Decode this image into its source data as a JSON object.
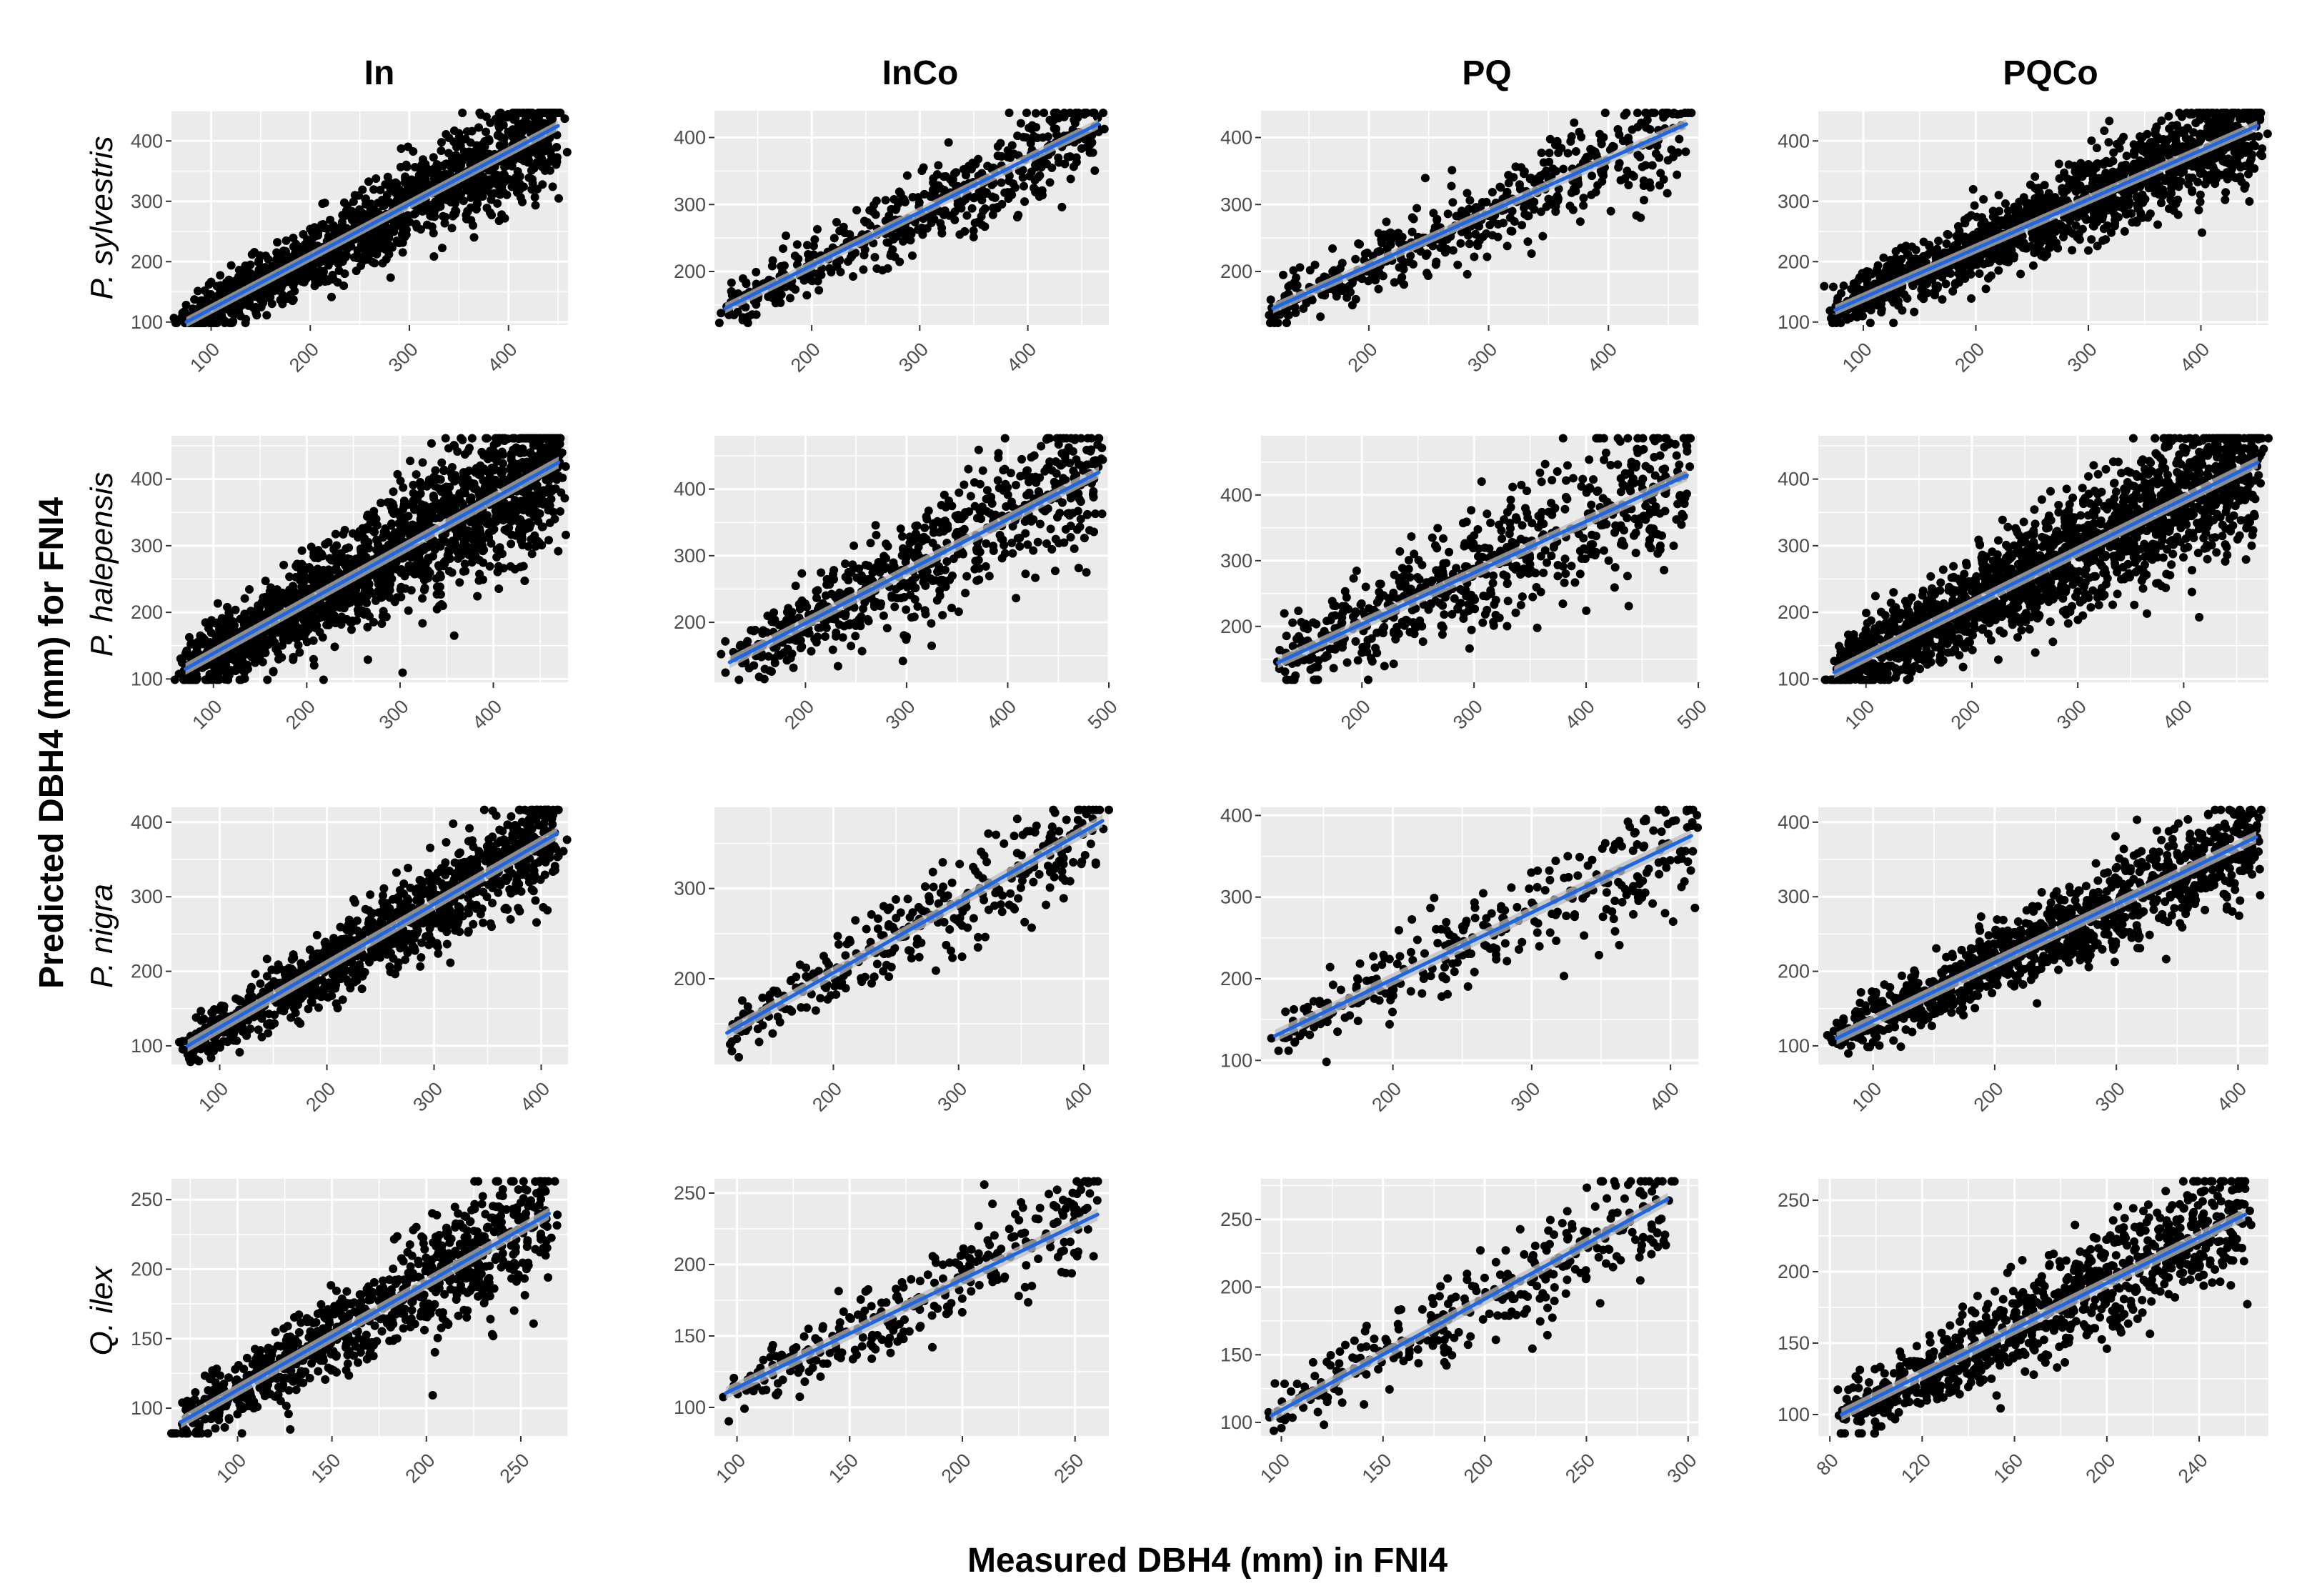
{
  "figure": {
    "xlabel": "Measured DBH4 (mm) in FNI4",
    "ylabel": "Predicted DBH4 (mm) for FNI4",
    "columns": [
      "In",
      "InCo",
      "PQ",
      "PQCo"
    ],
    "rows": [
      "P. sylvestris",
      "P. halepensis",
      "P. nigra",
      "Q. ilex"
    ]
  },
  "colors": {
    "panel_background": "#ebebeb",
    "grid": "#ffffff",
    "points": "#000000",
    "fit_line": "#1f66e5",
    "confidence_band": "#bcbcbc",
    "tick_text": "#4d4d4d"
  },
  "chart_data": [
    {
      "type": "scatter",
      "row": "P. sylvestris",
      "column": "In",
      "xlim": [
        60,
        460
      ],
      "ylim": [
        95,
        450
      ],
      "xticks": [
        100,
        200,
        300,
        400
      ],
      "yticks": [
        100,
        200,
        300,
        400
      ],
      "fit": {
        "x": [
          75,
          450
        ],
        "y": [
          100,
          425
        ]
      },
      "points": {
        "count": 1400,
        "spread": 35
      }
    },
    {
      "type": "scatter",
      "row": "P. sylvestris",
      "column": "InCo",
      "xlim": [
        110,
        475
      ],
      "ylim": [
        120,
        440
      ],
      "xticks": [
        200,
        300,
        400
      ],
      "yticks": [
        200,
        300,
        400
      ],
      "fit": {
        "x": [
          120,
          465
        ],
        "y": [
          145,
          420
        ]
      },
      "points": {
        "count": 500,
        "spread": 32
      }
    },
    {
      "type": "scatter",
      "row": "P. sylvestris",
      "column": "PQ",
      "xlim": [
        110,
        475
      ],
      "ylim": [
        120,
        440
      ],
      "xticks": [
        200,
        300,
        400
      ],
      "yticks": [
        200,
        300,
        400
      ],
      "fit": {
        "x": [
          120,
          465
        ],
        "y": [
          145,
          420
        ]
      },
      "points": {
        "count": 500,
        "spread": 32
      }
    },
    {
      "type": "scatter",
      "row": "P. sylvestris",
      "column": "PQCo",
      "xlim": [
        60,
        460
      ],
      "ylim": [
        95,
        450
      ],
      "xticks": [
        100,
        200,
        300,
        400
      ],
      "yticks": [
        100,
        200,
        300,
        400
      ],
      "fit": {
        "x": [
          75,
          450
        ],
        "y": [
          120,
          425
        ]
      },
      "points": {
        "count": 1400,
        "spread": 35
      }
    },
    {
      "type": "scatter",
      "row": "P. halepensis",
      "column": "In",
      "xlim": [
        55,
        480
      ],
      "ylim": [
        95,
        465
      ],
      "xticks": [
        100,
        200,
        300,
        400
      ],
      "yticks": [
        100,
        200,
        300,
        400
      ],
      "fit": {
        "x": [
          70,
          470
        ],
        "y": [
          115,
          425
        ]
      },
      "points": {
        "count": 1800,
        "spread": 45
      }
    },
    {
      "type": "scatter",
      "row": "P. halepensis",
      "column": "InCo",
      "xlim": [
        110,
        500
      ],
      "ylim": [
        110,
        480
      ],
      "xticks": [
        200,
        300,
        400,
        500
      ],
      "yticks": [
        200,
        300,
        400
      ],
      "fit": {
        "x": [
          125,
          490
        ],
        "y": [
          140,
          425
        ]
      },
      "points": {
        "count": 650,
        "spread": 45
      }
    },
    {
      "type": "scatter",
      "row": "P. halepensis",
      "column": "PQ",
      "xlim": [
        110,
        500
      ],
      "ylim": [
        115,
        490
      ],
      "xticks": [
        200,
        300,
        400,
        500
      ],
      "yticks": [
        200,
        300,
        400
      ],
      "fit": {
        "x": [
          125,
          490
        ],
        "y": [
          145,
          430
        ]
      },
      "points": {
        "count": 650,
        "spread": 48
      }
    },
    {
      "type": "scatter",
      "row": "P. halepensis",
      "column": "PQCo",
      "xlim": [
        55,
        480
      ],
      "ylim": [
        95,
        465
      ],
      "xticks": [
        100,
        200,
        300,
        400
      ],
      "yticks": [
        100,
        200,
        300,
        400
      ],
      "fit": {
        "x": [
          70,
          470
        ],
        "y": [
          110,
          425
        ]
      },
      "points": {
        "count": 1800,
        "spread": 45
      }
    },
    {
      "type": "scatter",
      "row": "P. nigra",
      "column": "In",
      "xlim": [
        55,
        425
      ],
      "ylim": [
        75,
        420
      ],
      "xticks": [
        100,
        200,
        300,
        400
      ],
      "yticks": [
        100,
        200,
        300,
        400
      ],
      "fit": {
        "x": [
          70,
          415
        ],
        "y": [
          100,
          385
        ]
      },
      "points": {
        "count": 1100,
        "spread": 28
      }
    },
    {
      "type": "scatter",
      "row": "P. nigra",
      "column": "InCo",
      "xlim": [
        105,
        420
      ],
      "ylim": [
        105,
        390
      ],
      "xticks": [
        200,
        300,
        400
      ],
      "yticks": [
        200,
        300
      ],
      "fit": {
        "x": [
          115,
          415
        ],
        "y": [
          140,
          375
        ]
      },
      "points": {
        "count": 320,
        "spread": 25
      }
    },
    {
      "type": "scatter",
      "row": "P. nigra",
      "column": "PQ",
      "xlim": [
        105,
        420
      ],
      "ylim": [
        95,
        410
      ],
      "xticks": [
        200,
        300,
        400
      ],
      "yticks": [
        100,
        200,
        300,
        400
      ],
      "fit": {
        "x": [
          115,
          415
        ],
        "y": [
          130,
          375
        ]
      },
      "points": {
        "count": 320,
        "spread": 30
      }
    },
    {
      "type": "scatter",
      "row": "P. nigra",
      "column": "PQCo",
      "xlim": [
        55,
        425
      ],
      "ylim": [
        75,
        420
      ],
      "xticks": [
        100,
        200,
        300,
        400
      ],
      "yticks": [
        100,
        200,
        300,
        400
      ],
      "fit": {
        "x": [
          70,
          415
        ],
        "y": [
          110,
          380
        ]
      },
      "points": {
        "count": 1100,
        "spread": 28
      }
    },
    {
      "type": "scatter",
      "row": "Q. ilex",
      "column": "In",
      "xlim": [
        65,
        275
      ],
      "ylim": [
        80,
        265
      ],
      "xticks": [
        100,
        150,
        200,
        250
      ],
      "yticks": [
        100,
        150,
        200,
        250
      ],
      "fit": {
        "x": [
          70,
          265
        ],
        "y": [
          90,
          240
        ]
      },
      "points": {
        "count": 900,
        "spread": 18
      }
    },
    {
      "type": "scatter",
      "row": "Q. ilex",
      "column": "InCo",
      "xlim": [
        90,
        265
      ],
      "ylim": [
        80,
        260
      ],
      "xticks": [
        100,
        150,
        200,
        250
      ],
      "yticks": [
        100,
        150,
        200,
        250
      ],
      "fit": {
        "x": [
          95,
          260
        ],
        "y": [
          110,
          235
        ]
      },
      "points": {
        "count": 300,
        "spread": 15
      }
    },
    {
      "type": "scatter",
      "row": "Q. ilex",
      "column": "PQ",
      "xlim": [
        90,
        305
      ],
      "ylim": [
        90,
        280
      ],
      "xticks": [
        100,
        150,
        200,
        250,
        300
      ],
      "yticks": [
        100,
        150,
        200,
        250
      ],
      "fit": {
        "x": [
          95,
          290
        ],
        "y": [
          105,
          265
        ]
      },
      "points": {
        "count": 320,
        "spread": 17
      }
    },
    {
      "type": "scatter",
      "row": "Q. ilex",
      "column": "PQCo",
      "xlim": [
        75,
        270
      ],
      "ylim": [
        85,
        265
      ],
      "xticks": [
        80,
        120,
        160,
        200,
        240
      ],
      "yticks": [
        100,
        150,
        200,
        250
      ],
      "fit": {
        "x": [
          85,
          260
        ],
        "y": [
          100,
          240
        ]
      },
      "points": {
        "count": 900,
        "spread": 18
      }
    }
  ]
}
